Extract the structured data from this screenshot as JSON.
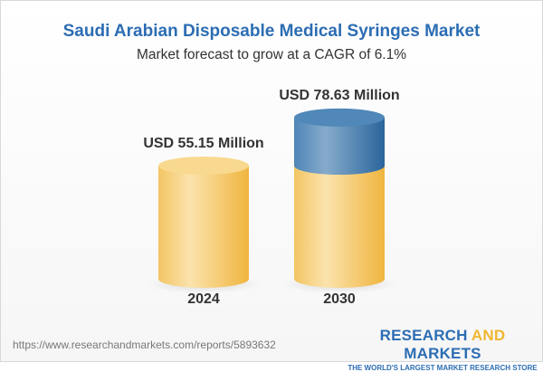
{
  "chart_data": {
    "type": "bar",
    "style": "3d-cylinder",
    "title": "Saudi Arabian Disposable Medical Syringes Market",
    "subtitle": "Market forecast to grow at a CAGR of 6.1%",
    "categories": [
      "2024",
      "2030"
    ],
    "values": [
      55.15,
      78.63
    ],
    "data_labels": [
      "USD 55.15 Million",
      "USD 78.63 Million"
    ],
    "unit": "USD Million",
    "colors": {
      "base": "#f5c55e",
      "growth": "#3f7fb3",
      "title": "#2c6db3"
    }
  },
  "footer": {
    "url": "https://www.researchandmarkets.com/reports/5893632",
    "logo_part1": "RESEARCH ",
    "logo_part2": "AND",
    "logo_part3": " MARKETS",
    "tagline": "THE WORLD'S LARGEST MARKET RESEARCH STORE"
  }
}
